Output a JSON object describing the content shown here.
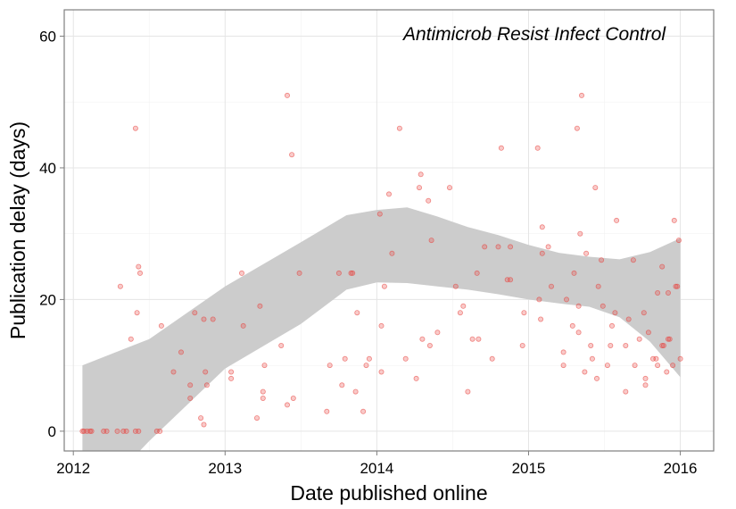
{
  "chart_data": {
    "type": "scatter",
    "title": "",
    "annotation": "Antimicrob Resist Infect Control",
    "xlabel": "Date published online",
    "ylabel": "Publication delay (days)",
    "xlim": [
      1.94,
      6.22
    ],
    "ylim": [
      -3,
      64
    ],
    "x_ticks": [
      {
        "value": 2,
        "label": "2012"
      },
      {
        "value": 3,
        "label": "2013"
      },
      {
        "value": 4,
        "label": "2014"
      },
      {
        "value": 5,
        "label": "2015"
      },
      {
        "value": 6,
        "label": "2016"
      }
    ],
    "y_ticks": [
      {
        "value": 0,
        "label": "0"
      },
      {
        "value": 20,
        "label": "20"
      },
      {
        "value": 40,
        "label": "40"
      },
      {
        "value": 60,
        "label": "60"
      }
    ],
    "grid": true,
    "point_color": "#e8413c",
    "band_color": "#cccccc",
    "points": [
      [
        2.06,
        0
      ],
      [
        2.07,
        0
      ],
      [
        2.09,
        0
      ],
      [
        2.11,
        0
      ],
      [
        2.12,
        0
      ],
      [
        2.2,
        0
      ],
      [
        2.22,
        0
      ],
      [
        2.29,
        0
      ],
      [
        2.33,
        0
      ],
      [
        2.35,
        0
      ],
      [
        2.41,
        0
      ],
      [
        2.43,
        0
      ],
      [
        2.55,
        0
      ],
      [
        2.57,
        0
      ],
      [
        2.31,
        22
      ],
      [
        2.38,
        14
      ],
      [
        2.41,
        46
      ],
      [
        2.42,
        18
      ],
      [
        2.43,
        25
      ],
      [
        2.44,
        24
      ],
      [
        2.58,
        16
      ],
      [
        2.66,
        9
      ],
      [
        2.71,
        12
      ],
      [
        2.77,
        7
      ],
      [
        2.77,
        5
      ],
      [
        2.8,
        18
      ],
      [
        2.84,
        2
      ],
      [
        2.86,
        1
      ],
      [
        2.86,
        17
      ],
      [
        2.87,
        9
      ],
      [
        2.88,
        7
      ],
      [
        2.92,
        17
      ],
      [
        3.04,
        9
      ],
      [
        3.04,
        8
      ],
      [
        3.11,
        24
      ],
      [
        3.12,
        16
      ],
      [
        3.21,
        2
      ],
      [
        3.23,
        19
      ],
      [
        3.25,
        6
      ],
      [
        3.25,
        5
      ],
      [
        3.26,
        10
      ],
      [
        3.37,
        13
      ],
      [
        3.41,
        51
      ],
      [
        3.41,
        4
      ],
      [
        3.44,
        42
      ],
      [
        3.45,
        5
      ],
      [
        3.49,
        24
      ],
      [
        3.67,
        3
      ],
      [
        3.69,
        10
      ],
      [
        3.75,
        24
      ],
      [
        3.77,
        7
      ],
      [
        3.79,
        11
      ],
      [
        3.83,
        24
      ],
      [
        3.84,
        24
      ],
      [
        3.86,
        6
      ],
      [
        3.87,
        18
      ],
      [
        3.91,
        3
      ],
      [
        3.93,
        10
      ],
      [
        3.95,
        11
      ],
      [
        4.02,
        33
      ],
      [
        4.03,
        16
      ],
      [
        4.03,
        9
      ],
      [
        4.05,
        22
      ],
      [
        4.08,
        36
      ],
      [
        4.1,
        27
      ],
      [
        4.15,
        46
      ],
      [
        4.19,
        11
      ],
      [
        4.26,
        8
      ],
      [
        4.28,
        37
      ],
      [
        4.29,
        39
      ],
      [
        4.3,
        14
      ],
      [
        4.34,
        35
      ],
      [
        4.35,
        13
      ],
      [
        4.36,
        29
      ],
      [
        4.4,
        15
      ],
      [
        4.48,
        37
      ],
      [
        4.52,
        22
      ],
      [
        4.55,
        18
      ],
      [
        4.57,
        19
      ],
      [
        4.6,
        6
      ],
      [
        4.63,
        14
      ],
      [
        4.66,
        24
      ],
      [
        4.67,
        14
      ],
      [
        4.71,
        28
      ],
      [
        4.76,
        11
      ],
      [
        4.8,
        28
      ],
      [
        4.82,
        43
      ],
      [
        4.86,
        23
      ],
      [
        4.88,
        28
      ],
      [
        4.88,
        23
      ],
      [
        4.96,
        13
      ],
      [
        4.97,
        18
      ],
      [
        5.06,
        43
      ],
      [
        5.07,
        20
      ],
      [
        5.08,
        17
      ],
      [
        5.09,
        31
      ],
      [
        5.09,
        27
      ],
      [
        5.13,
        28
      ],
      [
        5.15,
        22
      ],
      [
        5.23,
        12
      ],
      [
        5.23,
        10
      ],
      [
        5.25,
        20
      ],
      [
        5.29,
        16
      ],
      [
        5.3,
        24
      ],
      [
        5.32,
        46
      ],
      [
        5.33,
        19
      ],
      [
        5.33,
        15
      ],
      [
        5.34,
        30
      ],
      [
        5.35,
        51
      ],
      [
        5.37,
        9
      ],
      [
        5.38,
        27
      ],
      [
        5.41,
        13
      ],
      [
        5.42,
        11
      ],
      [
        5.44,
        37
      ],
      [
        5.45,
        8
      ],
      [
        5.46,
        22
      ],
      [
        5.48,
        26
      ],
      [
        5.49,
        19
      ],
      [
        5.52,
        10
      ],
      [
        5.54,
        13
      ],
      [
        5.55,
        16
      ],
      [
        5.57,
        18
      ],
      [
        5.58,
        32
      ],
      [
        5.64,
        6
      ],
      [
        5.64,
        13
      ],
      [
        5.66,
        17
      ],
      [
        5.69,
        26
      ],
      [
        5.7,
        10
      ],
      [
        5.73,
        14
      ],
      [
        5.76,
        18
      ],
      [
        5.77,
        8
      ],
      [
        5.77,
        7
      ],
      [
        5.79,
        15
      ],
      [
        5.82,
        11
      ],
      [
        5.84,
        11
      ],
      [
        5.85,
        21
      ],
      [
        5.85,
        10
      ],
      [
        5.88,
        13
      ],
      [
        5.88,
        25
      ],
      [
        5.89,
        13
      ],
      [
        5.91,
        9
      ],
      [
        5.92,
        14
      ],
      [
        5.92,
        21
      ],
      [
        5.93,
        14
      ],
      [
        5.95,
        10
      ],
      [
        5.96,
        32
      ],
      [
        5.97,
        22
      ],
      [
        5.98,
        22
      ],
      [
        5.99,
        29
      ],
      [
        6.0,
        11
      ]
    ],
    "smooth_band": {
      "x": [
        2.06,
        2.5,
        3.0,
        3.5,
        3.8,
        4.0,
        4.2,
        4.4,
        4.6,
        4.8,
        5.0,
        5.2,
        5.4,
        5.6,
        5.8,
        6.0
      ],
      "upper": [
        10,
        14,
        22,
        28.7,
        32.8,
        33.6,
        34.0,
        32.6,
        31.0,
        29.8,
        28.3,
        27.1,
        26.5,
        26.1,
        27.2,
        29.3
      ],
      "lower": [
        -12,
        -1.5,
        9.5,
        16.3,
        21.5,
        22.6,
        22.5,
        22.0,
        21.5,
        20.8,
        20.0,
        19.4,
        18.9,
        17.3,
        13.6,
        8.2
      ]
    }
  }
}
